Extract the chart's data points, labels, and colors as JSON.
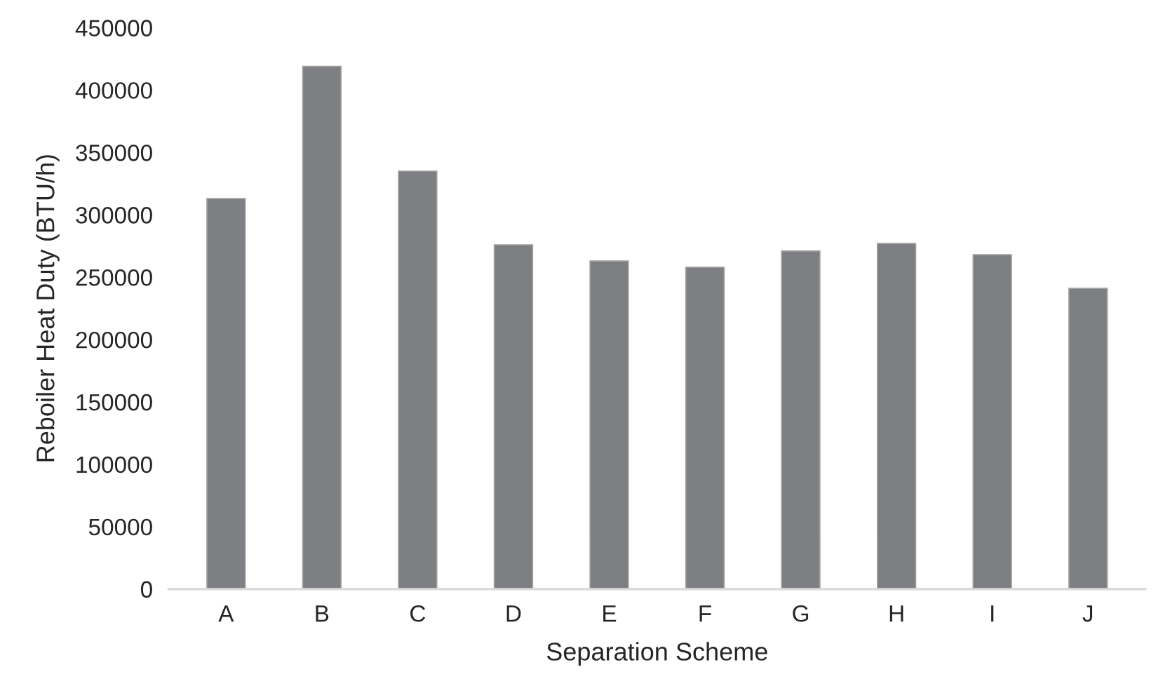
{
  "chart_data": {
    "type": "bar",
    "xlabel": "Separation Scheme",
    "ylabel": "Reboiler Heat Duty (BTU/h)",
    "categories": [
      "A",
      "B",
      "C",
      "D",
      "E",
      "F",
      "G",
      "H",
      "I",
      "J"
    ],
    "values": [
      313000,
      419000,
      335000,
      276000,
      263000,
      258000,
      271000,
      277000,
      268000,
      241000
    ],
    "color": "#7e7f83",
    "ylim": [
      0,
      450000
    ],
    "yticks": [
      0,
      50000,
      100000,
      150000,
      200000,
      250000,
      300000,
      350000,
      400000,
      450000
    ],
    "grid": false
  }
}
